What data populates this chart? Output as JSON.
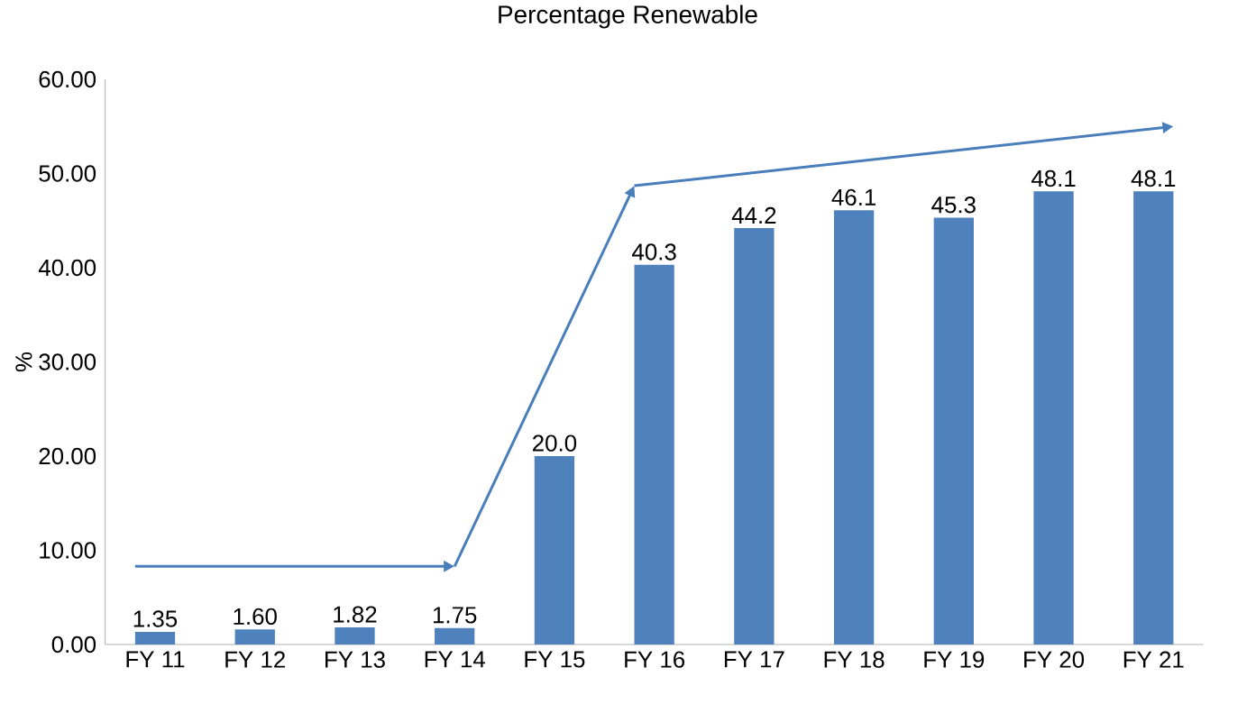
{
  "chart_data": {
    "type": "bar",
    "title": "Percentage Renewable",
    "ylabel": "%",
    "categories": [
      "FY 11",
      "FY 12",
      "FY 13",
      "FY 14",
      "FY 15",
      "FY 16",
      "FY 17",
      "FY 18",
      "FY 19",
      "FY 20",
      "FY 21"
    ],
    "values": [
      1.35,
      1.6,
      1.82,
      1.75,
      20.0,
      40.3,
      44.2,
      46.1,
      45.3,
      48.1,
      48.1
    ],
    "value_labels": [
      "1.35",
      "1.60",
      "1.82",
      "1.75",
      "20.0",
      "40.3",
      "44.2",
      "46.1",
      "45.3",
      "48.1",
      "48.1"
    ],
    "color": "#4f81bd",
    "ylim": [
      0,
      60
    ],
    "yticks": [
      {
        "value": 0,
        "label": "0.00"
      },
      {
        "value": 10,
        "label": "10.00"
      },
      {
        "value": 20,
        "label": "20.00"
      },
      {
        "value": 30,
        "label": "30.00"
      },
      {
        "value": 40,
        "label": "40.00"
      },
      {
        "value": 50,
        "label": "50.00"
      },
      {
        "value": 60,
        "label": "60.00"
      }
    ],
    "grid": false
  }
}
